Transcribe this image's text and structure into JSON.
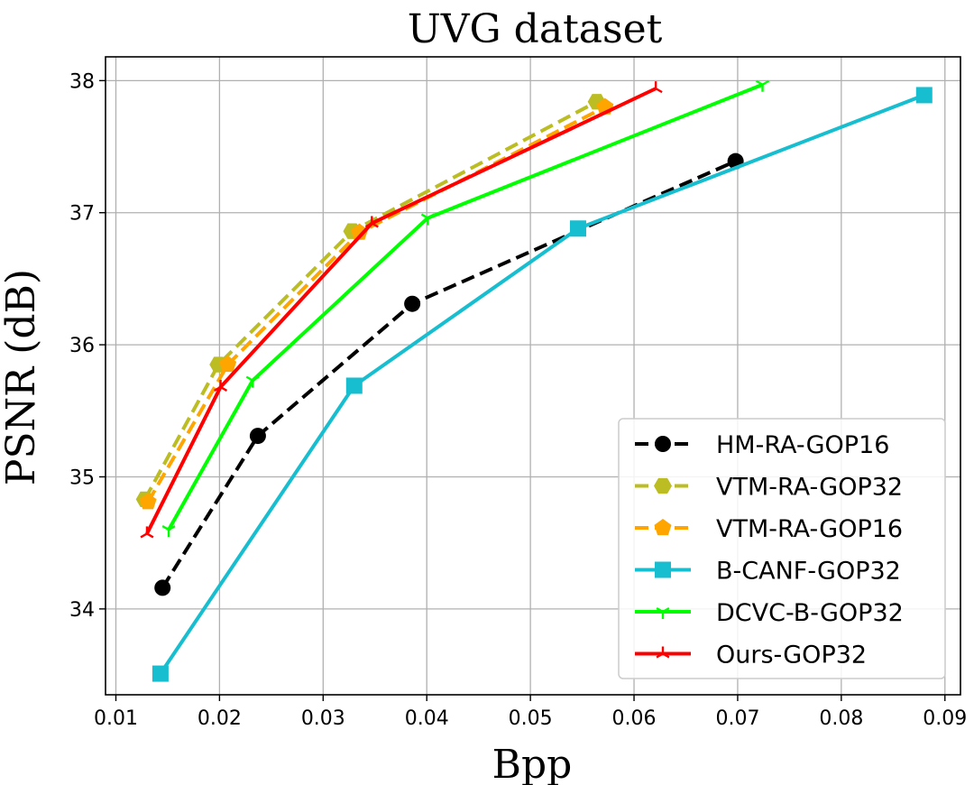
{
  "chart_data": {
    "type": "line",
    "title": "UVG dataset",
    "xlabel": "Bpp",
    "ylabel": "PSNR (dB)",
    "xlim": [
      0.009,
      0.0915
    ],
    "ylim": [
      33.35,
      38.18
    ],
    "grid": true,
    "legend_position": "bottom-right",
    "x_ticks": [
      0.01,
      0.02,
      0.03,
      0.04,
      0.05,
      0.06,
      0.07,
      0.08,
      0.09
    ],
    "x_tick_labels": [
      "0.01",
      "0.02",
      "0.03",
      "0.04",
      "0.05",
      "0.06",
      "0.07",
      "0.08",
      "0.09"
    ],
    "y_ticks": [
      34,
      35,
      36,
      37,
      38
    ],
    "y_tick_labels": [
      "34",
      "35",
      "36",
      "37",
      "38"
    ],
    "series": [
      {
        "name": "HM-RA-GOP16",
        "color": "#000000",
        "dash": "dashed",
        "marker": "circle",
        "points": [
          [
            0.0145,
            34.16
          ],
          [
            0.0237,
            35.31
          ],
          [
            0.0386,
            36.31
          ],
          [
            0.0698,
            37.39
          ]
        ]
      },
      {
        "name": "VTM-RA-GOP32",
        "color": "#bcbd22",
        "dash": "dashed",
        "marker": "hexagon",
        "points": [
          [
            0.0128,
            34.83
          ],
          [
            0.0199,
            35.85
          ],
          [
            0.0328,
            36.86
          ],
          [
            0.0564,
            37.84
          ]
        ]
      },
      {
        "name": "VTM-RA-GOP16",
        "color": "#ffa500",
        "dash": "dashed",
        "marker": "pentagon",
        "points": [
          [
            0.0131,
            34.81
          ],
          [
            0.0208,
            35.85
          ],
          [
            0.0335,
            36.85
          ],
          [
            0.0572,
            37.8
          ]
        ]
      },
      {
        "name": "B-CANF-GOP32",
        "color": "#17becf",
        "dash": "solid",
        "marker": "square",
        "points": [
          [
            0.0143,
            33.51
          ],
          [
            0.033,
            35.69
          ],
          [
            0.0546,
            36.88
          ],
          [
            0.088,
            37.89
          ]
        ]
      },
      {
        "name": "DCVC-B-GOP32",
        "color": "#00ff00",
        "dash": "solid",
        "marker": "tri_down",
        "points": [
          [
            0.0151,
            34.6
          ],
          [
            0.0232,
            35.73
          ],
          [
            0.0401,
            36.96
          ],
          [
            0.0724,
            37.97
          ]
        ]
      },
      {
        "name": "Ours-GOP32",
        "color": "#ff0000",
        "dash": "solid",
        "marker": "tri_up",
        "points": [
          [
            0.013,
            34.57
          ],
          [
            0.0201,
            35.68
          ],
          [
            0.0347,
            36.92
          ],
          [
            0.0621,
            37.94
          ]
        ]
      }
    ]
  }
}
